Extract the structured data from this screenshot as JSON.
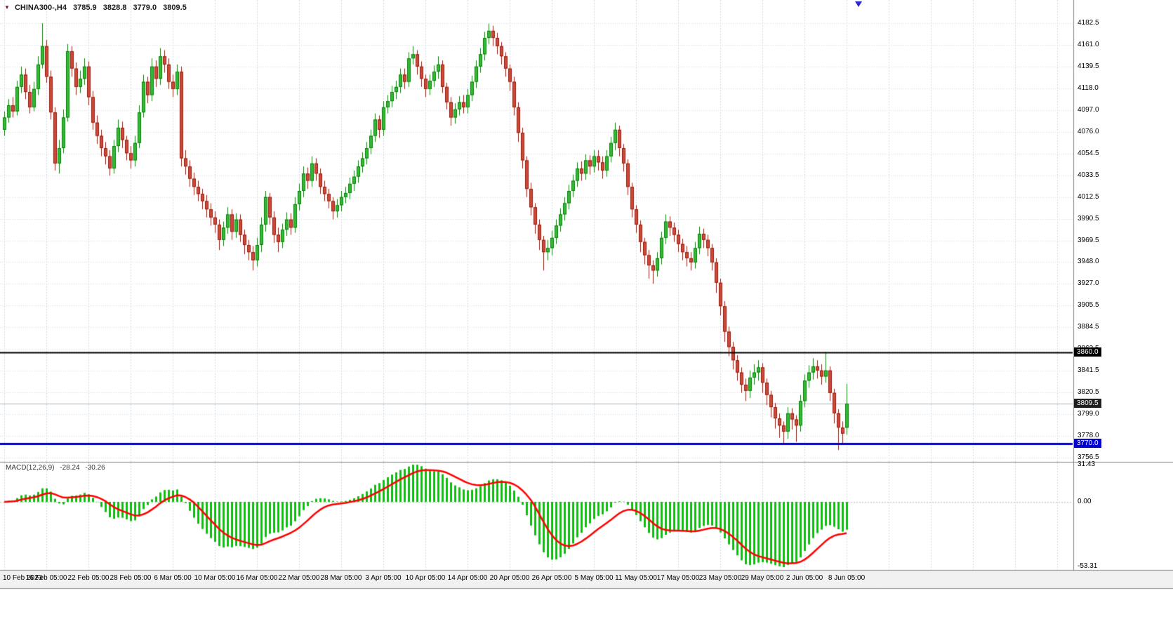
{
  "quote": {
    "symbol_tf": "CHINA300-,H4",
    "open": "3785.9",
    "high": "3828.8",
    "low": "3779.0",
    "close": "3809.5"
  },
  "colors": {
    "up": "#31bd31",
    "up_border": "#0f7a0f",
    "down": "#d34836",
    "down_border": "#8c1f14",
    "grid": "#cfdbe6",
    "macd_hist": "#00c800",
    "macd_signal": "#ff0000",
    "macd_zero": "#c0c0c0",
    "current_price_line": "#9fb0bd",
    "strip_bg": "#f1f1f1",
    "border": "#888888",
    "text": "#000000",
    "shift_marker": "#2a2ad0"
  },
  "chart_data": {
    "type": "candlestick",
    "symbol": "CHINA300",
    "timeframe": "H4",
    "title": "CHINA300-,H4",
    "ohlc_current": {
      "open": 3785.9,
      "high": 3828.8,
      "low": 3779.0,
      "close": 3809.5
    },
    "ylim": [
      3756.5,
      4182.5
    ],
    "grid": true,
    "y_ticks": [
      "4182.5",
      "4161.0",
      "4139.5",
      "4118.0",
      "4097.0",
      "4076.0",
      "4054.5",
      "4033.5",
      "4012.5",
      "3990.5",
      "3969.5",
      "3948.0",
      "3927.0",
      "3905.5",
      "3884.5",
      "3863.5",
      "3841.5",
      "3820.5",
      "3799.0",
      "3778.0",
      "3756.5"
    ],
    "x_labels": [
      "10 Feb 2023",
      "16 Feb 05:00",
      "22 Feb 05:00",
      "28 Feb 05:00",
      "6 Mar 05:00",
      "10 Mar 05:00",
      "16 Mar 05:00",
      "22 Mar 05:00",
      "28 Mar 05:00",
      "3 Apr 05:00",
      "10 Apr 05:00",
      "14 Apr 05:00",
      "20 Apr 05:00",
      "26 Apr 05:00",
      "5 May 05:00",
      "11 May 05:00",
      "17 May 05:00",
      "23 May 05:00",
      "29 May 05:00",
      "2 Jun 05:00",
      "8 Jun 05:00"
    ],
    "hlines": [
      {
        "name": "level-3860",
        "value": 3860.0,
        "label": "3860.0",
        "color": "#000000",
        "badge": "#000000",
        "width": 2,
        "style": "solid"
      },
      {
        "name": "current-price",
        "value": 3809.5,
        "label": "3809.5",
        "color": "#9fb0bd",
        "badge": "#1f1f1f",
        "width": 1,
        "style": "thin"
      },
      {
        "name": "level-3770",
        "value": 3770.0,
        "label": "3770.0",
        "color": "#0000dd",
        "badge": "#0000cc",
        "width": 3,
        "style": "solid"
      }
    ],
    "indicator": {
      "type": "MACD",
      "label": "MACD(12,26,9)",
      "params": "12,26,9",
      "value_main": "-28.24",
      "value_signal": "-30.26",
      "scale_labels": [
        "31.43",
        "0.00",
        "-53.31"
      ],
      "scale_max": 31.43,
      "scale_min": -53.31
    },
    "candles": [
      [
        4078,
        4096,
        4072,
        4090
      ],
      [
        4090,
        4108,
        4085,
        4102
      ],
      [
        4102,
        4110,
        4090,
        4096
      ],
      [
        4096,
        4126,
        4092,
        4120
      ],
      [
        4120,
        4140,
        4114,
        4132
      ],
      [
        4132,
        4138,
        4108,
        4115
      ],
      [
        4115,
        4122,
        4094,
        4100
      ],
      [
        4100,
        4125,
        4096,
        4118
      ],
      [
        4118,
        4150,
        4112,
        4142
      ],
      [
        4142,
        4182.5,
        4138,
        4160
      ],
      [
        4160,
        4166,
        4124,
        4130
      ],
      [
        4130,
        4136,
        4088,
        4095
      ],
      [
        4095,
        4100,
        4038,
        4045
      ],
      [
        4045,
        4068,
        4035,
        4060
      ],
      [
        4060,
        4098,
        4055,
        4090
      ],
      [
        4090,
        4162,
        4086,
        4155
      ],
      [
        4155,
        4160,
        4130,
        4138
      ],
      [
        4138,
        4144,
        4112,
        4120
      ],
      [
        4120,
        4136,
        4114,
        4128
      ],
      [
        4128,
        4148,
        4122,
        4140
      ],
      [
        4140,
        4145,
        4102,
        4110
      ],
      [
        4110,
        4116,
        4078,
        4085
      ],
      [
        4085,
        4092,
        4064,
        4072
      ],
      [
        4072,
        4078,
        4052,
        4060
      ],
      [
        4060,
        4066,
        4044,
        4052
      ],
      [
        4052,
        4058,
        4033,
        4040
      ],
      [
        4040,
        4068,
        4035,
        4062
      ],
      [
        4062,
        4088,
        4056,
        4080
      ],
      [
        4080,
        4086,
        4060,
        4068
      ],
      [
        4068,
        4072,
        4048,
        4055
      ],
      [
        4055,
        4062,
        4040,
        4048
      ],
      [
        4048,
        4072,
        4042,
        4065
      ],
      [
        4065,
        4102,
        4060,
        4095
      ],
      [
        4095,
        4132,
        4090,
        4125
      ],
      [
        4125,
        4130,
        4104,
        4112
      ],
      [
        4112,
        4148,
        4106,
        4140
      ],
      [
        4140,
        4146,
        4120,
        4128
      ],
      [
        4128,
        4158,
        4122,
        4150
      ],
      [
        4150,
        4156,
        4134,
        4142
      ],
      [
        4142,
        4148,
        4118,
        4125
      ],
      [
        4125,
        4132,
        4110,
        4118
      ],
      [
        4118,
        4142,
        4112,
        4135
      ],
      [
        4135,
        4140,
        4042,
        4050
      ],
      [
        4050,
        4058,
        4034,
        4042
      ],
      [
        4042,
        4048,
        4022,
        4030
      ],
      [
        4030,
        4036,
        4014,
        4022
      ],
      [
        4022,
        4028,
        4008,
        4015
      ],
      [
        4015,
        4020,
        4000,
        4008
      ],
      [
        4008,
        4014,
        3992,
        4000
      ],
      [
        4000,
        4006,
        3984,
        3992
      ],
      [
        3992,
        3998,
        3977,
        3985
      ],
      [
        3985,
        3990,
        3960,
        3970
      ],
      [
        3970,
        3988,
        3964,
        3982
      ],
      [
        3982,
        4002,
        3976,
        3995
      ],
      [
        3995,
        4000,
        3970,
        3978
      ],
      [
        3978,
        3996,
        3972,
        3990
      ],
      [
        3990,
        3995,
        3968,
        3975
      ],
      [
        3975,
        3980,
        3956,
        3965
      ],
      [
        3965,
        3970,
        3950,
        3958
      ],
      [
        3958,
        3964,
        3940,
        3950
      ],
      [
        3950,
        3972,
        3944,
        3965
      ],
      [
        3965,
        3992,
        3958,
        3985
      ],
      [
        3985,
        4018,
        3978,
        4012
      ],
      [
        4012,
        4016,
        3985,
        3992
      ],
      [
        3992,
        3998,
        3967,
        3975
      ],
      [
        3975,
        3982,
        3958,
        3968
      ],
      [
        3968,
        3986,
        3962,
        3980
      ],
      [
        3980,
        3997,
        3974,
        3990
      ],
      [
        3990,
        3996,
        3975,
        3982
      ],
      [
        3982,
        4012,
        3977,
        4005
      ],
      [
        4005,
        4025,
        3999,
        4018
      ],
      [
        4018,
        4042,
        4012,
        4035
      ],
      [
        4035,
        4041,
        4020,
        4028
      ],
      [
        4028,
        4052,
        4022,
        4045
      ],
      [
        4045,
        4050,
        4028,
        4035
      ],
      [
        4035,
        4040,
        4015,
        4022
      ],
      [
        4022,
        4028,
        4008,
        4015
      ],
      [
        4015,
        4020,
        4001,
        4008
      ],
      [
        4008,
        4012,
        3990,
        3998
      ],
      [
        3998,
        4010,
        3992,
        4004
      ],
      [
        4004,
        4018,
        3998,
        4012
      ],
      [
        4012,
        4022,
        4006,
        4016
      ],
      [
        4016,
        4031,
        4010,
        4025
      ],
      [
        4025,
        4038,
        4018,
        4032
      ],
      [
        4032,
        4048,
        4026,
        4042
      ],
      [
        4042,
        4056,
        4036,
        4050
      ],
      [
        4050,
        4066,
        4044,
        4060
      ],
      [
        4060,
        4078,
        4054,
        4072
      ],
      [
        4072,
        4094,
        4066,
        4088
      ],
      [
        4088,
        4092,
        4070,
        4078
      ],
      [
        4078,
        4106,
        4072,
        4100
      ],
      [
        4100,
        4112,
        4094,
        4106
      ],
      [
        4106,
        4121,
        4100,
        4115
      ],
      [
        4115,
        4126,
        4108,
        4120
      ],
      [
        4120,
        4138,
        4114,
        4132
      ],
      [
        4132,
        4138,
        4118,
        4125
      ],
      [
        4125,
        4154,
        4120,
        4148
      ],
      [
        4148,
        4160,
        4142,
        4152
      ],
      [
        4152,
        4156,
        4132,
        4140
      ],
      [
        4140,
        4145,
        4120,
        4128
      ],
      [
        4128,
        4132,
        4110,
        4118
      ],
      [
        4118,
        4132,
        4112,
        4126
      ],
      [
        4126,
        4141,
        4120,
        4135
      ],
      [
        4135,
        4150,
        4128,
        4142
      ],
      [
        4142,
        4146,
        4114,
        4120
      ],
      [
        4120,
        4124,
        4098,
        4105
      ],
      [
        4105,
        4110,
        4082,
        4090
      ],
      [
        4090,
        4104,
        4084,
        4098
      ],
      [
        4098,
        4111,
        4092,
        4105
      ],
      [
        4105,
        4112,
        4094,
        4100
      ],
      [
        4100,
        4118,
        4094,
        4112
      ],
      [
        4112,
        4131,
        4106,
        4125
      ],
      [
        4125,
        4146,
        4119,
        4140
      ],
      [
        4140,
        4158,
        4134,
        4152
      ],
      [
        4152,
        4174,
        4146,
        4168
      ],
      [
        4168,
        4182,
        4162,
        4175
      ],
      [
        4175,
        4180,
        4160,
        4168
      ],
      [
        4168,
        4173,
        4152,
        4160
      ],
      [
        4160,
        4164,
        4142,
        4150
      ],
      [
        4150,
        4154,
        4130,
        4138
      ],
      [
        4138,
        4142,
        4116,
        4125
      ],
      [
        4125,
        4130,
        4092,
        4100
      ],
      [
        4100,
        4105,
        4066,
        4075
      ],
      [
        4075,
        4080,
        4040,
        4048
      ],
      [
        4048,
        4052,
        4012,
        4020
      ],
      [
        4020,
        4026,
        3994,
        4002
      ],
      [
        4002,
        4006,
        3976,
        3985
      ],
      [
        3985,
        3990,
        3960,
        3970
      ],
      [
        3970,
        3974,
        3940,
        3958
      ],
      [
        3958,
        3970,
        3950,
        3962
      ],
      [
        3962,
        3979,
        3955,
        3972
      ],
      [
        3972,
        3990,
        3966,
        3984
      ],
      [
        3984,
        4001,
        3978,
        3995
      ],
      [
        3995,
        4012,
        3989,
        4006
      ],
      [
        4006,
        4024,
        4000,
        4018
      ],
      [
        4018,
        4034,
        4012,
        4028
      ],
      [
        4028,
        4046,
        4022,
        4040
      ],
      [
        4040,
        4047,
        4028,
        4035
      ],
      [
        4035,
        4054,
        4029,
        4048
      ],
      [
        4048,
        4053,
        4034,
        4042
      ],
      [
        4042,
        4058,
        4036,
        4052
      ],
      [
        4052,
        4058,
        4038,
        4046
      ],
      [
        4046,
        4052,
        4030,
        4038
      ],
      [
        4038,
        4058,
        4032,
        4052
      ],
      [
        4052,
        4071,
        4046,
        4065
      ],
      [
        4065,
        4085,
        4058,
        4078
      ],
      [
        4078,
        4082,
        4052,
        4060
      ],
      [
        4060,
        4064,
        4037,
        4045
      ],
      [
        4045,
        4049,
        4014,
        4022
      ],
      [
        4022,
        4026,
        3992,
        4000
      ],
      [
        4000,
        4004,
        3977,
        3985
      ],
      [
        3985,
        3989,
        3958,
        3968
      ],
      [
        3968,
        3972,
        3946,
        3955
      ],
      [
        3955,
        3960,
        3932,
        3945
      ],
      [
        3945,
        3950,
        3927,
        3940
      ],
      [
        3940,
        3958,
        3934,
        3952
      ],
      [
        3952,
        3978,
        3946,
        3972
      ],
      [
        3972,
        3995,
        3966,
        3988
      ],
      [
        3988,
        3993,
        3974,
        3982
      ],
      [
        3982,
        3987,
        3968,
        3975
      ],
      [
        3975,
        3980,
        3958,
        3966
      ],
      [
        3966,
        3971,
        3950,
        3958
      ],
      [
        3958,
        3964,
        3944,
        3952
      ],
      [
        3952,
        3958,
        3940,
        3948
      ],
      [
        3948,
        3968,
        3942,
        3962
      ],
      [
        3962,
        3983,
        3956,
        3976
      ],
      [
        3976,
        3981,
        3962,
        3970
      ],
      [
        3970,
        3975,
        3954,
        3962
      ],
      [
        3962,
        3966,
        3940,
        3948
      ],
      [
        3948,
        3952,
        3918,
        3928
      ],
      [
        3928,
        3932,
        3896,
        3905
      ],
      [
        3905,
        3910,
        3870,
        3880
      ],
      [
        3880,
        3885,
        3856,
        3865
      ],
      [
        3865,
        3870,
        3843,
        3852
      ],
      [
        3852,
        3857,
        3832,
        3840
      ],
      [
        3840,
        3845,
        3820,
        3828
      ],
      [
        3828,
        3834,
        3812,
        3822
      ],
      [
        3822,
        3842,
        3815,
        3835
      ],
      [
        3835,
        3848,
        3828,
        3840
      ],
      [
        3840,
        3852,
        3832,
        3845
      ],
      [
        3845,
        3849,
        3820,
        3830
      ],
      [
        3830,
        3834,
        3808,
        3818
      ],
      [
        3818,
        3822,
        3796,
        3806
      ],
      [
        3806,
        3810,
        3785,
        3795
      ],
      [
        3795,
        3800,
        3776,
        3788
      ],
      [
        3788,
        3792,
        3770,
        3782
      ],
      [
        3782,
        3806,
        3775,
        3800
      ],
      [
        3800,
        3805,
        3784,
        3794
      ],
      [
        3794,
        3798,
        3772,
        3788
      ],
      [
        3788,
        3818,
        3782,
        3812
      ],
      [
        3812,
        3838,
        3806,
        3832
      ],
      [
        3832,
        3847,
        3825,
        3840
      ],
      [
        3840,
        3854,
        3833,
        3846
      ],
      [
        3846,
        3852,
        3834,
        3842
      ],
      [
        3842,
        3848,
        3828,
        3836
      ],
      [
        3836,
        3860,
        3830,
        3842
      ],
      [
        3842,
        3846,
        3812,
        3820
      ],
      [
        3820,
        3824,
        3790,
        3800
      ],
      [
        3800,
        3804,
        3764,
        3786
      ],
      [
        3786,
        3792,
        3770,
        3780
      ],
      [
        3785.9,
        3828.8,
        3779,
        3809.5
      ]
    ]
  }
}
